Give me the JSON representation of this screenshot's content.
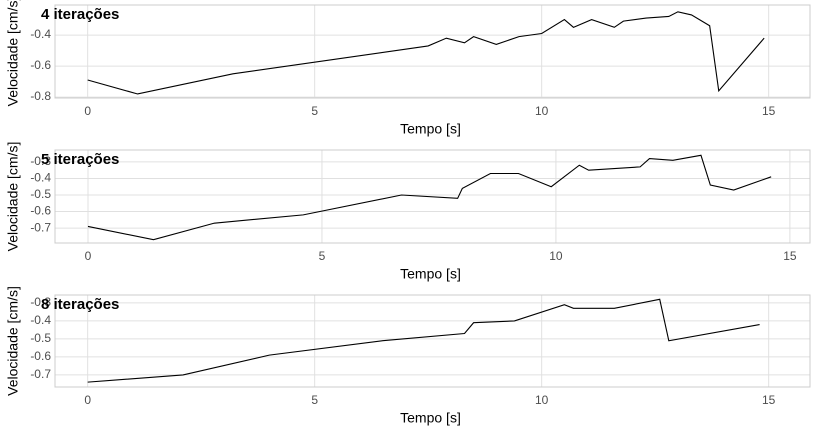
{
  "chart_data": [
    {
      "type": "line",
      "title": "4 iterações",
      "x_label": "Tempo [s]",
      "y_label": "Velocidade [cm/s]",
      "grid": true,
      "color": "#000000",
      "x": [
        0,
        1.1,
        3.2,
        7.5,
        7.9,
        8.3,
        8.5,
        9.0,
        9.5,
        10.0,
        10.5,
        10.7,
        11.1,
        11.6,
        11.8,
        12.3,
        12.8,
        13.0,
        13.3,
        13.7,
        13.9,
        14.9
      ],
      "values": [
        -0.69,
        -0.78,
        -0.65,
        -0.47,
        -0.42,
        -0.45,
        -0.41,
        -0.46,
        -0.41,
        -0.39,
        -0.3,
        -0.35,
        -0.3,
        -0.35,
        -0.31,
        -0.29,
        -0.28,
        -0.25,
        -0.27,
        -0.34,
        -0.76,
        -0.42
      ],
      "xlim": [
        -0.72,
        15.91
      ],
      "xticks": [
        0,
        5,
        10,
        15
      ],
      "ylim": [
        -0.806,
        -0.206
      ],
      "yticks": [
        -0.8,
        -0.6,
        -0.4
      ]
    },
    {
      "type": "line",
      "title": "5 iterações",
      "x_label": "Tempo [s]",
      "y_label": "Velocidade [cm/s]",
      "grid": true,
      "color": "#000000",
      "x": [
        0,
        1.4,
        2.7,
        4.6,
        6.7,
        7.9,
        8.0,
        8.6,
        9.2,
        9.9,
        10.5,
        10.7,
        11.8,
        12.0,
        12.5,
        13.1,
        13.3,
        13.8,
        14.6
      ],
      "values": [
        -0.69,
        -0.77,
        -0.67,
        -0.62,
        -0.5,
        -0.52,
        -0.46,
        -0.37,
        -0.37,
        -0.45,
        -0.32,
        -0.35,
        -0.33,
        -0.28,
        -0.29,
        -0.26,
        -0.44,
        -0.47,
        -0.39
      ],
      "xlim": [
        -0.705,
        15.43
      ],
      "xticks": [
        0,
        5,
        10,
        15
      ],
      "ylim": [
        -0.79,
        -0.228
      ],
      "yticks": [
        -0.7,
        -0.6,
        -0.5,
        -0.4,
        -0.3
      ]
    },
    {
      "type": "line",
      "title": "8 iterações",
      "x_label": "Tempo [s]",
      "y_label": "Velocidade [cm/s]",
      "grid": true,
      "color": "#000000",
      "x": [
        0,
        2.1,
        4.0,
        6.5,
        8.3,
        8.5,
        9.4,
        10.5,
        10.7,
        11.6,
        12.6,
        12.8,
        14.8
      ],
      "values": [
        -0.74,
        -0.7,
        -0.59,
        -0.51,
        -0.47,
        -0.41,
        -0.4,
        -0.31,
        -0.33,
        -0.33,
        -0.28,
        -0.51,
        -0.42
      ],
      "xlim": [
        -0.72,
        15.91
      ],
      "xticks": [
        0,
        5,
        10,
        15
      ],
      "ylim": [
        -0.767,
        -0.256
      ],
      "yticks": [
        -0.7,
        -0.6,
        -0.5,
        -0.4,
        -0.3
      ]
    }
  ]
}
